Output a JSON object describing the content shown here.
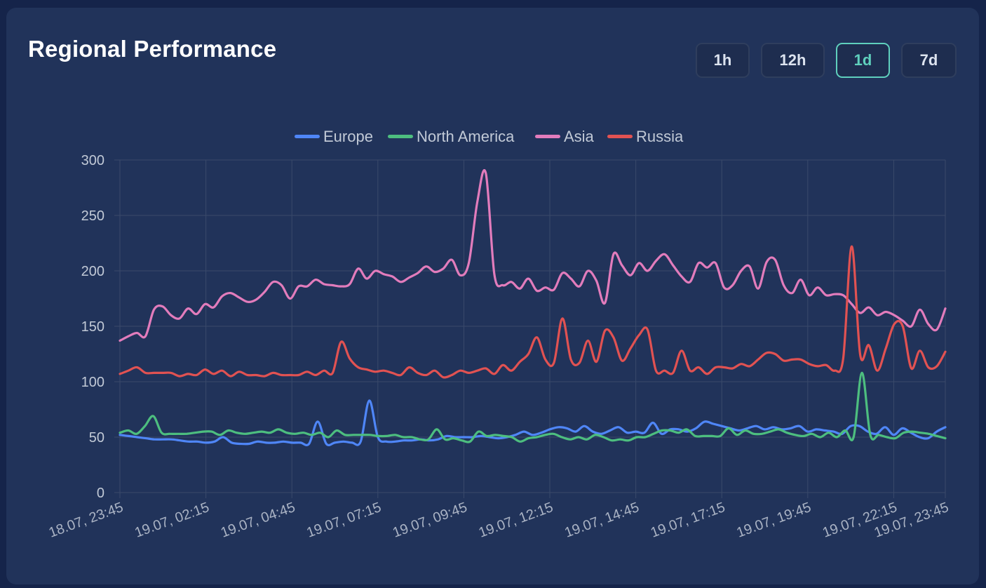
{
  "card": {
    "title": "Regional Performance"
  },
  "range_buttons": [
    {
      "label": "1h",
      "active": false
    },
    {
      "label": "12h",
      "active": false
    },
    {
      "label": "1d",
      "active": true
    },
    {
      "label": "7d",
      "active": false
    }
  ],
  "colors": {
    "accent": "#5fd0bd",
    "card_bg": "#21335a",
    "page_bg": "#15244a",
    "grid": "#3a4a6b"
  },
  "chart_data": {
    "type": "line",
    "ylim": [
      0,
      300
    ],
    "yticks": [
      "0",
      "50",
      "100",
      "150",
      "200",
      "250",
      "300"
    ],
    "xlim": [
      0,
      96
    ],
    "xticks": [
      {
        "label": "18.07, 23:45",
        "x": 0
      },
      {
        "label": "19.07, 02:15",
        "x": 10
      },
      {
        "label": "19.07, 04:45",
        "x": 20
      },
      {
        "label": "19.07, 07:15",
        "x": 30
      },
      {
        "label": "19.07, 09:45",
        "x": 40
      },
      {
        "label": "19.07, 12:15",
        "x": 50
      },
      {
        "label": "19.07, 14:45",
        "x": 60
      },
      {
        "label": "19.07, 17:15",
        "x": 70
      },
      {
        "label": "19.07, 19:45",
        "x": 80
      },
      {
        "label": "19.07, 22:15",
        "x": 90
      },
      {
        "label": "19.07, 23:45",
        "x": 96
      }
    ],
    "series": [
      {
        "name": "Europe",
        "color": "#4f86f7",
        "values": [
          52,
          51,
          50,
          49,
          48,
          48,
          48,
          47,
          46,
          46,
          45,
          46,
          50,
          45,
          44,
          44,
          46,
          45,
          45,
          46,
          45,
          45,
          44,
          64,
          44,
          45,
          46,
          45,
          46,
          83,
          50,
          46,
          46,
          47,
          47,
          48,
          47,
          48,
          51,
          50,
          50,
          50,
          51,
          50,
          49,
          50,
          52,
          55,
          52,
          54,
          57,
          59,
          58,
          55,
          60,
          55,
          53,
          56,
          59,
          54,
          55,
          54,
          63,
          53,
          57,
          57,
          55,
          58,
          64,
          62,
          60,
          58,
          56,
          58,
          60,
          57,
          59,
          57,
          58,
          60,
          55,
          57,
          56,
          55,
          53,
          60,
          60,
          55,
          53,
          59,
          52,
          58,
          54,
          50,
          49,
          55,
          59
        ]
      },
      {
        "name": "North America",
        "color": "#4dbe7f",
        "values": [
          54,
          56,
          53,
          60,
          69,
          54,
          53,
          53,
          53,
          54,
          55,
          55,
          52,
          56,
          54,
          53,
          54,
          55,
          54,
          57,
          54,
          53,
          54,
          52,
          54,
          50,
          56,
          52,
          52,
          52,
          52,
          51,
          51,
          52,
          50,
          50,
          48,
          48,
          57,
          48,
          49,
          47,
          46,
          55,
          51,
          52,
          51,
          50,
          46,
          49,
          50,
          52,
          53,
          50,
          48,
          50,
          48,
          52,
          50,
          47,
          48,
          47,
          50,
          50,
          53,
          56,
          56,
          54,
          57,
          51,
          51,
          51,
          51,
          58,
          52,
          56,
          53,
          53,
          55,
          57,
          54,
          52,
          51,
          53,
          50,
          54,
          50,
          56,
          50,
          108,
          52,
          52,
          50,
          49,
          54,
          55,
          54,
          53,
          51,
          49
        ]
      },
      {
        "name": "Asia",
        "color": "#e27cbc",
        "values": [
          137,
          141,
          144,
          141,
          165,
          168,
          160,
          157,
          166,
          161,
          170,
          167,
          177,
          180,
          176,
          172,
          174,
          181,
          190,
          187,
          175,
          186,
          186,
          192,
          188,
          187,
          186,
          188,
          202,
          193,
          200,
          197,
          195,
          190,
          194,
          198,
          204,
          199,
          202,
          210,
          196,
          207,
          262,
          288,
          197,
          187,
          190,
          184,
          193,
          182,
          185,
          183,
          198,
          193,
          186,
          200,
          191,
          171,
          215,
          205,
          196,
          207,
          200,
          209,
          215,
          205,
          195,
          190,
          207,
          203,
          207,
          185,
          187,
          200,
          204,
          184,
          208,
          210,
          187,
          180,
          192,
          178,
          185,
          178,
          179,
          178,
          170,
          162,
          167,
          160,
          163,
          160,
          155,
          150,
          165,
          152,
          147,
          166
        ]
      },
      {
        "name": "Russia",
        "color": "#e15252",
        "values": [
          107,
          110,
          113,
          108,
          108,
          108,
          108,
          105,
          107,
          106,
          111,
          107,
          110,
          105,
          109,
          106,
          106,
          105,
          108,
          106,
          106,
          106,
          109,
          106,
          110,
          108,
          136,
          121,
          113,
          111,
          109,
          110,
          108,
          106,
          113,
          108,
          106,
          110,
          104,
          106,
          110,
          108,
          110,
          112,
          107,
          115,
          110,
          118,
          125,
          140,
          120,
          117,
          157,
          120,
          117,
          137,
          118,
          146,
          140,
          119,
          130,
          142,
          147,
          110,
          110,
          108,
          128,
          110,
          113,
          107,
          113,
          113,
          112,
          116,
          114,
          120,
          126,
          125,
          119,
          120,
          120,
          116,
          114,
          115,
          110,
          121,
          222,
          124,
          133,
          110,
          130,
          152,
          150,
          112,
          128,
          113,
          114,
          127
        ]
      }
    ]
  }
}
